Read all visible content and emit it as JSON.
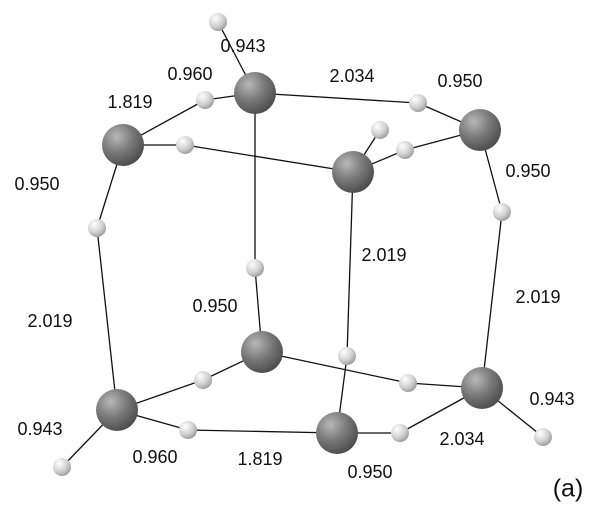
{
  "bond_labels": [
    "0.943",
    "0.960",
    "2.034",
    "0.950",
    "1.819",
    "0.950",
    "0.950",
    "2.019",
    "2.019",
    "2.019",
    "0.950",
    "0.943",
    "0.960",
    "1.819",
    "0.950",
    "2.034",
    "0.943"
  ],
  "panel_label": "(a)"
}
